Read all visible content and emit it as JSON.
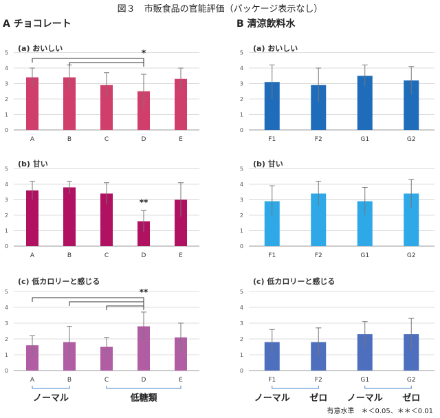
{
  "figure_title": "図３　市販食品の官能評価（パッケージ表示なし）",
  "panels": [
    {
      "label": "A チョコレート"
    },
    {
      "label": "B 清涼飲料水"
    }
  ],
  "footnote": "有意水準　＊＜0.05、＊＊＜0.01",
  "chart_data": [
    {
      "type": "bar",
      "title": "(a) おいしい",
      "categories": [
        "A",
        "B",
        "C",
        "D",
        "E"
      ],
      "values": [
        3.4,
        3.4,
        2.9,
        2.5,
        3.3
      ],
      "errors": [
        0.6,
        0.8,
        0.8,
        1.1,
        0.7
      ],
      "ylim": [
        0,
        5
      ],
      "color": "#d03f6c",
      "significance": [
        {
          "from": "A",
          "to": "D",
          "label": ""
        },
        {
          "from": "B",
          "to": "D",
          "label": ""
        }
      ],
      "sig_mark": "*",
      "sig_mark_at": "D"
    },
    {
      "type": "bar",
      "title": "(b) 甘い",
      "categories": [
        "A",
        "B",
        "C",
        "D",
        "E"
      ],
      "values": [
        3.6,
        3.8,
        3.4,
        1.6,
        3.0
      ],
      "errors": [
        0.6,
        0.4,
        0.7,
        0.7,
        1.1
      ],
      "ylim": [
        0,
        5
      ],
      "color": "#b01160",
      "significance": [],
      "sig_mark": "**",
      "sig_mark_at": "D"
    },
    {
      "type": "bar",
      "title": "(c) 低カロリーと感じる",
      "categories": [
        "A",
        "B",
        "C",
        "D",
        "E"
      ],
      "values": [
        1.6,
        1.8,
        1.5,
        2.8,
        2.1
      ],
      "errors": [
        0.6,
        1.0,
        0.6,
        0.9,
        0.9
      ],
      "ylim": [
        0,
        5
      ],
      "color": "#b15da4",
      "significance": [
        {
          "from": "A",
          "to": "D",
          "label": ""
        },
        {
          "from": "B",
          "to": "D",
          "label": ""
        },
        {
          "from": "C",
          "to": "D",
          "label": ""
        }
      ],
      "sig_mark": "**",
      "sig_mark_at": "D",
      "groups": [
        {
          "label": "ノーマル",
          "from": "A",
          "to": "B"
        },
        {
          "label": "低糖類",
          "from": "C",
          "to": "E"
        }
      ]
    },
    {
      "type": "bar",
      "title": "(a) おいしい",
      "categories": [
        "F1",
        "F2",
        "G1",
        "G2"
      ],
      "values": [
        3.1,
        2.9,
        3.5,
        3.2
      ],
      "errors": [
        1.1,
        1.1,
        0.7,
        0.9
      ],
      "ylim": [
        0,
        5
      ],
      "color": "#1f6cba",
      "significance": []
    },
    {
      "type": "bar",
      "title": "(b) 甘い",
      "categories": [
        "F1",
        "F2",
        "G1",
        "G2"
      ],
      "values": [
        2.9,
        3.4,
        2.9,
        3.4
      ],
      "errors": [
        1.0,
        0.8,
        0.9,
        0.9
      ],
      "ylim": [
        0,
        5
      ],
      "color": "#2ea8e6",
      "significance": []
    },
    {
      "type": "bar",
      "title": "(c) 低カロリーと感じる",
      "categories": [
        "F1",
        "F2",
        "G1",
        "G2"
      ],
      "values": [
        1.8,
        1.8,
        2.3,
        2.3
      ],
      "errors": [
        0.8,
        0.9,
        0.8,
        1.0
      ],
      "ylim": [
        0,
        5
      ],
      "color": "#4d6fbe",
      "significance": [],
      "groups": [
        {
          "label": "ノーマル",
          "from": "F1",
          "to": "F1"
        },
        {
          "label": "ゼロ",
          "from": "F2",
          "to": "F2"
        },
        {
          "label": "ノーマル",
          "from": "G1",
          "to": "G1"
        },
        {
          "label": "ゼロ",
          "from": "G2",
          "to": "G2"
        }
      ],
      "group_brackets": [
        {
          "from": "F1",
          "to": "F2"
        },
        {
          "from": "G1",
          "to": "G2"
        }
      ]
    }
  ]
}
